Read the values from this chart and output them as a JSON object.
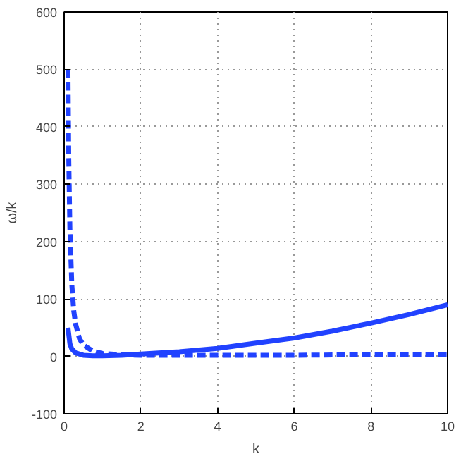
{
  "chart_data": {
    "type": "line",
    "xlabel": "k",
    "ylabel": "ω/k",
    "xlim": [
      0,
      10
    ],
    "ylim": [
      -100,
      600
    ],
    "xticks": [
      0,
      2,
      4,
      6,
      8,
      10
    ],
    "yticks": [
      -100,
      0,
      100,
      200,
      300,
      400,
      500,
      600
    ],
    "grid": true,
    "marker": "none",
    "series": [
      {
        "color": "#2142ff",
        "line_style": "solid",
        "x": [
          0.1,
          0.15,
          0.2,
          0.3,
          0.5,
          0.75,
          1,
          1.5,
          2,
          3,
          4,
          5,
          6,
          7,
          8,
          9,
          10
        ],
        "values": [
          50,
          22,
          13,
          6,
          2,
          1,
          1,
          2,
          4,
          8,
          14,
          23,
          32,
          44,
          58,
          73,
          90
        ]
      },
      {
        "color": "#2142ff",
        "line_style": "dashed",
        "x": [
          0.1,
          0.12,
          0.15,
          0.2,
          0.25,
          0.3,
          0.4,
          0.5,
          0.75,
          1,
          1.5,
          2,
          3,
          4,
          6,
          8,
          10
        ],
        "values": [
          500,
          347,
          222,
          125,
          80,
          56,
          31,
          20,
          9,
          5,
          3,
          2,
          2,
          2,
          2,
          3,
          3
        ]
      }
    ]
  }
}
